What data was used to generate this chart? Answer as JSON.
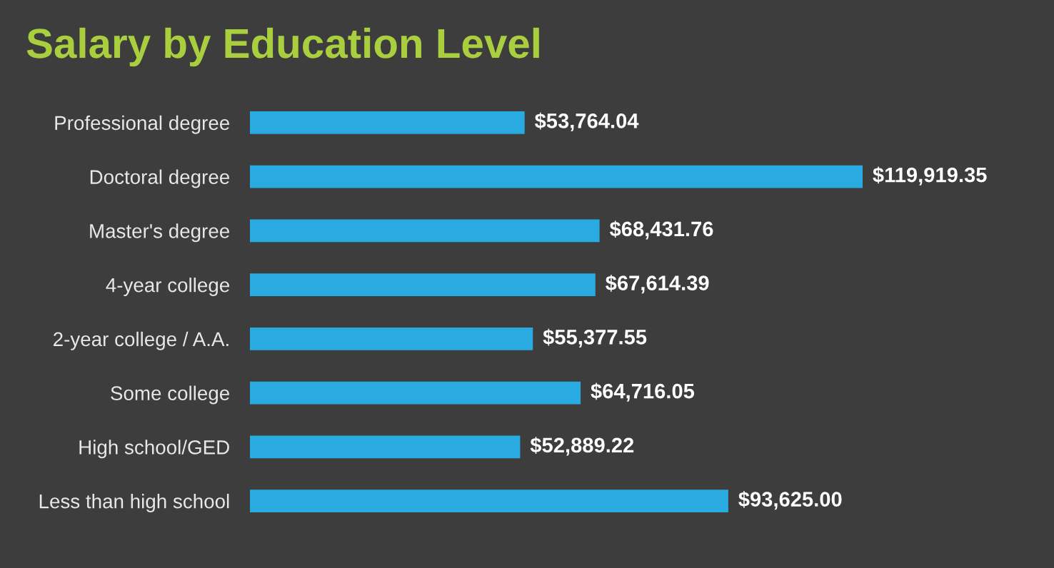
{
  "chart_data": {
    "type": "bar",
    "orientation": "horizontal",
    "title": "Salary by Education Level",
    "categories": [
      "Professional degree",
      "Doctoral degree",
      "Master's degree",
      "4-year college",
      "2-year college / A.A.",
      "Some college",
      "High school/GED",
      "Less than high school"
    ],
    "values": [
      53764.04,
      119919.35,
      68431.76,
      67614.39,
      55377.55,
      64716.05,
      52889.22,
      93625.0
    ],
    "value_labels": [
      "$53,764.04",
      "$119,919.35",
      "$68,431.76",
      "$67,614.39",
      "$55,377.55",
      "$64,716.05",
      "$52,889.22",
      "$93,625.00"
    ],
    "color": "#29abe2",
    "grid": false,
    "legend": false,
    "tick_labels": "y"
  }
}
